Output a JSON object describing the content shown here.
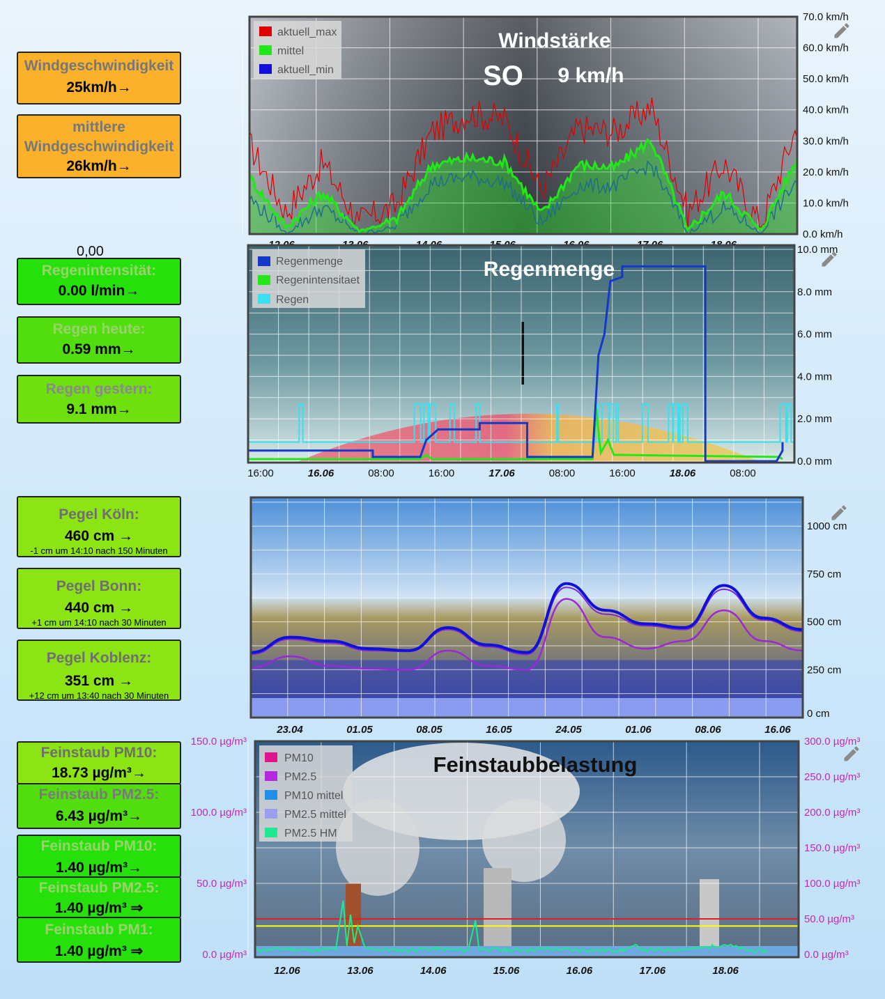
{
  "tiles": {
    "wind_speed": {
      "label": "Windgeschwindigkeit",
      "value": "25km/h→"
    },
    "wind_avg": {
      "label1": "mittlere",
      "label2": "Windgeschwindigkeit",
      "value": "26km/h→"
    },
    "zero_value": "0,00",
    "rain_intensity": {
      "label": "Regenintensität:",
      "value": "0.00 l/min→"
    },
    "rain_today": {
      "label": "Regen heute:",
      "value": "0.59 mm→"
    },
    "rain_yesterday": {
      "label": "Regen gestern:",
      "value": "9.1 mm→"
    },
    "pegel_koeln": {
      "label": "Pegel Köln:",
      "value": "460 cm →",
      "sub": "-1 cm um 14:10 nach 150 Minuten"
    },
    "pegel_bonn": {
      "label": "Pegel Bonn:",
      "value": "440 cm →",
      "sub": "+1 cm um 14:10 nach 30 Minuten"
    },
    "pegel_koblenz": {
      "label": "Pegel Koblenz:",
      "value": "351 cm →",
      "sub": "+12 cm um 13:40 nach 30 Minuten"
    },
    "pm10_a": {
      "label": "Feinstaub PM10:",
      "value": "18.73 µg/m³→"
    },
    "pm25_a": {
      "label": "Feinstaub PM2.5:",
      "value": "6.43 µg/m³→"
    },
    "pm10_b": {
      "label": "Feinstaub PM10:",
      "value": "1.40 µg/m³→"
    },
    "pm25_b": {
      "label": "Feinstaub PM2.5:",
      "value": "1.40 µg/m³ ⇒"
    },
    "pm1_b": {
      "label": "Feinstaub PM1:",
      "value": "1.40 µg/m³ ⇒"
    }
  },
  "icons": {
    "edit": "pencil-icon"
  },
  "colors": {
    "orange": "#fbb22a",
    "green": "#26e00c",
    "lime": "#8de414",
    "wind_max": "#e00000",
    "wind_avg": "#22e81a",
    "wind_min": "#1010d8"
  },
  "chart_data": [
    {
      "type": "line",
      "title": "Windstärke",
      "direction": "SO",
      "current": "9 km/h",
      "x_ticks": [
        "12.06",
        "13.06",
        "14.06",
        "15.06",
        "16.06",
        "17.06",
        "18.06"
      ],
      "y_ticks": [
        "0.0 km/h",
        "10.0 km/h",
        "20.0 km/h",
        "30.0 km/h",
        "40.0 km/h",
        "50.0 km/h",
        "60.0 km/h",
        "70.0 km/h"
      ],
      "ylim": [
        0,
        70
      ],
      "x": [
        0,
        0.5,
        1,
        1.5,
        2,
        2.5,
        3,
        3.5,
        4,
        4.5,
        5,
        5.5,
        6,
        6.5,
        7,
        7.5
      ],
      "series": [
        {
          "name": "aktuell_max",
          "values": [
            28,
            6,
            22,
            3,
            8,
            32,
            38,
            36,
            13,
            33,
            32,
            40,
            6,
            22,
            2,
            34
          ]
        },
        {
          "name": "mittel",
          "values": [
            18,
            2,
            13,
            1,
            4,
            22,
            24,
            23,
            6,
            22,
            21,
            30,
            1,
            13,
            1,
            24
          ]
        },
        {
          "name": "aktuell_min",
          "values": [
            11,
            0,
            8,
            0,
            2,
            16,
            18,
            16,
            3,
            15,
            15,
            22,
            0,
            8,
            0,
            17
          ]
        }
      ],
      "legend": "top-left"
    },
    {
      "type": "line",
      "title": "Regenmenge",
      "x_ticks": [
        "16:00",
        "16.06",
        "08:00",
        "16:00",
        "17.06",
        "08:00",
        "16:00",
        "18.06",
        "08:00"
      ],
      "y_ticks": [
        "0.0 mm",
        "2.0 mm",
        "4.0 mm",
        "6.0 mm",
        "8.0 mm",
        "10.0 mm"
      ],
      "ylim": [
        0,
        10
      ],
      "series": [
        {
          "name": "Regenmenge",
          "points": [
            [
              0,
              0.5
            ],
            [
              10.5,
              0.5
            ],
            [
              10.5,
              0.2
            ],
            [
              14.5,
              0.2
            ],
            [
              15,
              1.0
            ],
            [
              16,
              1.5
            ],
            [
              19.5,
              1.5
            ],
            [
              19.5,
              1.8
            ],
            [
              23.5,
              1.8
            ],
            [
              23.5,
              0.2
            ],
            [
              29,
              0.2
            ],
            [
              29.5,
              5.0
            ],
            [
              30,
              6.0
            ],
            [
              30.5,
              8.5
            ],
            [
              31.5,
              8.7
            ],
            [
              31.5,
              9.2
            ],
            [
              38.5,
              9.2
            ],
            [
              38.5,
              0.0
            ],
            [
              44.5,
              0.0
            ],
            [
              45,
              0.5
            ],
            [
              45,
              0.9
            ]
          ]
        },
        {
          "name": "Regenintensitaet",
          "points": [
            [
              0,
              0.1
            ],
            [
              14.5,
              0.1
            ],
            [
              15,
              0.3
            ],
            [
              15.5,
              0.1
            ],
            [
              29,
              0.1
            ],
            [
              29.3,
              2.5
            ],
            [
              29.7,
              0.4
            ],
            [
              30.3,
              1.0
            ],
            [
              30.8,
              0.3
            ],
            [
              44.7,
              0.2
            ],
            [
              45,
              0.1
            ]
          ]
        },
        {
          "name": "Regen",
          "values": [
            0.9,
            2.7
          ]
        }
      ],
      "legend": "top-left"
    },
    {
      "type": "line",
      "x_ticks": [
        "23.04",
        "01.05",
        "08.05",
        "16.05",
        "24.05",
        "01.06",
        "08.06",
        "16.06"
      ],
      "y_ticks": [
        "0 cm",
        "250 cm",
        "500 cm",
        "750 cm",
        "1000 cm"
      ],
      "ylim": [
        0,
        1150
      ],
      "series": [
        {
          "name": "Pegel Köln",
          "values": [
            340,
            420,
            400,
            360,
            350,
            470,
            380,
            340,
            700,
            560,
            490,
            470,
            690,
            520,
            460
          ]
        },
        {
          "name": "Pegel Bonn",
          "values": [
            330,
            410,
            390,
            350,
            345,
            460,
            370,
            330,
            680,
            540,
            480,
            460,
            670,
            510,
            450
          ]
        },
        {
          "name": "Pegel Koblenz",
          "values": [
            260,
            320,
            270,
            255,
            250,
            350,
            270,
            250,
            620,
            420,
            360,
            400,
            560,
            400,
            350
          ]
        }
      ]
    },
    {
      "type": "line",
      "title": "Feinstaubbelastung",
      "x_ticks": [
        "12.06",
        "13.06",
        "14.06",
        "15.06",
        "16.06",
        "17.06",
        "18.06"
      ],
      "y_ticks_left": [
        "0.0 µg/m³",
        "50.0 µg/m³",
        "100.0 µg/m³",
        "150.0 µg/m³"
      ],
      "y_ticks_right": [
        "0.0 µg/m³",
        "50.0 µg/m³",
        "100.0 µg/m³",
        "150.0 µg/m³",
        "200.0 µg/m³",
        "250.0 µg/m³",
        "300.0 µg/m³"
      ],
      "ylim_left": [
        0,
        150
      ],
      "ylim_right": [
        0,
        300
      ],
      "thresholds": [
        {
          "value": 50,
          "color": "#e02020"
        },
        {
          "value": 40,
          "color": "#ffff00"
        }
      ],
      "series": [
        {
          "name": "PM10"
        },
        {
          "name": "PM2.5"
        },
        {
          "name": "PM10 mittel"
        },
        {
          "name": "PM2.5 mittel"
        },
        {
          "name": "PM2.5 HM",
          "points": [
            [
              0,
              3
            ],
            [
              0.4,
              4
            ],
            [
              0.8,
              3
            ],
            [
              1.1,
              4
            ],
            [
              1.2,
              38
            ],
            [
              1.25,
              5
            ],
            [
              1.3,
              28
            ],
            [
              1.35,
              8
            ],
            [
              1.4,
              20
            ],
            [
              1.5,
              4
            ],
            [
              2,
              3
            ],
            [
              2.4,
              4
            ],
            [
              2.9,
              3
            ],
            [
              3.0,
              24
            ],
            [
              3.05,
              4
            ],
            [
              3.5,
              3
            ],
            [
              4,
              4
            ],
            [
              4.5,
              3
            ],
            [
              5,
              3
            ],
            [
              5.2,
              6
            ],
            [
              5.3,
              3
            ],
            [
              6,
              4
            ],
            [
              6.4,
              7
            ],
            [
              6.7,
              3
            ],
            [
              7,
              2
            ]
          ]
        }
      ],
      "legend": "top-left"
    }
  ]
}
